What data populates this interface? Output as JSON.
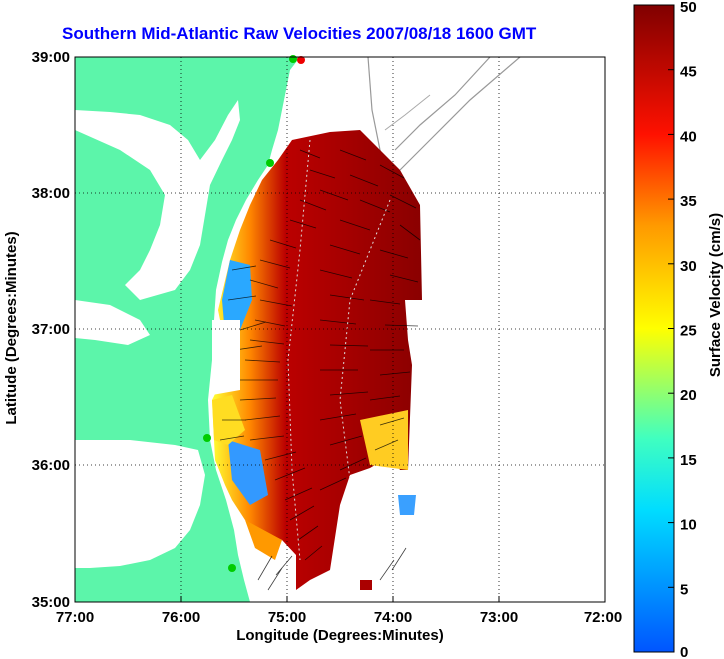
{
  "title": "Southern Mid-Atlantic Raw Velocities 2007/08/18 1600 GMT",
  "map": {
    "xlabel": "Longitude (Degrees:Minutes)",
    "ylabel": "Latitude (Degrees:Minutes)",
    "x_ticks": [
      "77:00",
      "76:00",
      "75:00",
      "74:00",
      "73:00",
      "72:00"
    ],
    "y_ticks": [
      "39:00",
      "38:00",
      "37:00",
      "36:00",
      "35:00"
    ],
    "lon_range": [
      -77,
      -72
    ],
    "lat_range": [
      35,
      39
    ],
    "colors": {
      "land": "#5cf5aa",
      "water": "#ffffff",
      "vectors": "#000000",
      "station": "#00cc00"
    }
  },
  "colorbar": {
    "label": "Surface Velocity (cm/s)",
    "ticks": [
      "50",
      "45",
      "40",
      "35",
      "30",
      "25",
      "20",
      "15",
      "10",
      "5",
      "0"
    ],
    "range": [
      0,
      50
    ],
    "colors": [
      "#0000ff",
      "#00ffff",
      "#ffff00",
      "#ff8800",
      "#ff0000",
      "#800000"
    ]
  },
  "chart_data": {
    "type": "heatmap",
    "title": "Southern Mid-Atlantic Raw Velocities 2007/08/18 1600 GMT",
    "xlabel": "Longitude (Degrees:Minutes)",
    "ylabel": "Latitude (Degrees:Minutes)",
    "xlim": [
      -77,
      -72
    ],
    "ylim": [
      35,
      39
    ],
    "colorbar_label": "Surface Velocity (cm/s)",
    "colorbar_range": [
      0,
      50
    ],
    "grid": true
  }
}
